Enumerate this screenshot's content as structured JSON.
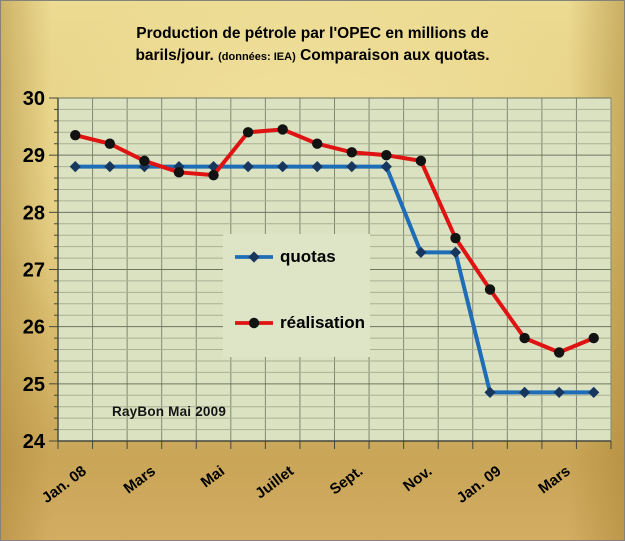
{
  "title": {
    "line1": "Production de pétrole par l'OPEC en millions de",
    "line2_pre": "barils/jour.",
    "note": "(données: IEA)",
    "line2_post": "Comparaison aux quotas."
  },
  "annotation": "RayBon Mai 2009",
  "legend": {
    "quotas_label": "quotas",
    "realisation_label": "réalisation"
  },
  "colors": {
    "plot_bg": "#dbe2c2",
    "legend_bg": "#dde5c6",
    "grid_vertical": "#808771",
    "grid_minor": "#a9b094",
    "grid_major": "#6e755f",
    "axis": "#44483c",
    "quotas_line": "#1e6db6",
    "quotas_marker": "#17375e",
    "realisation_line": "#e01313",
    "realisation_marker": "#121212",
    "frame_gold_light": "#f4e6a6",
    "frame_gold_dark": "#c49e4e"
  },
  "chart_data": {
    "type": "line",
    "title": "Production de pétrole par l'OPEC en millions de barils/jour. (données: IEA) Comparaison aux quotas.",
    "categories_count": 16,
    "x_labels": [
      {
        "index": 0,
        "label": "Jan. 08"
      },
      {
        "index": 2,
        "label": "Mars"
      },
      {
        "index": 4,
        "label": "Mai"
      },
      {
        "index": 6,
        "label": "Juillet"
      },
      {
        "index": 8,
        "label": "Sept."
      },
      {
        "index": 10,
        "label": "Nov."
      },
      {
        "index": 12,
        "label": "Jan. 09"
      },
      {
        "index": 14,
        "label": "Mars"
      }
    ],
    "x_label_angle_deg": -37,
    "ylim": [
      24,
      30
    ],
    "y_ticks": [
      30,
      29,
      28,
      27,
      26,
      25,
      24
    ],
    "y_minor_step": 0.2,
    "grid": true,
    "legend_position": "center",
    "series": [
      {
        "name": "quotas",
        "marker": "diamond",
        "values": [
          28.8,
          28.8,
          28.8,
          28.8,
          28.8,
          28.8,
          28.8,
          28.8,
          28.8,
          28.8,
          27.3,
          27.3,
          24.85,
          24.85,
          24.85,
          24.85
        ]
      },
      {
        "name": "réalisation",
        "marker": "circle",
        "values": [
          29.35,
          29.2,
          28.9,
          28.7,
          28.65,
          29.4,
          29.45,
          29.2,
          29.05,
          29.0,
          28.9,
          27.55,
          26.65,
          25.8,
          25.55,
          25.8
        ]
      }
    ]
  }
}
